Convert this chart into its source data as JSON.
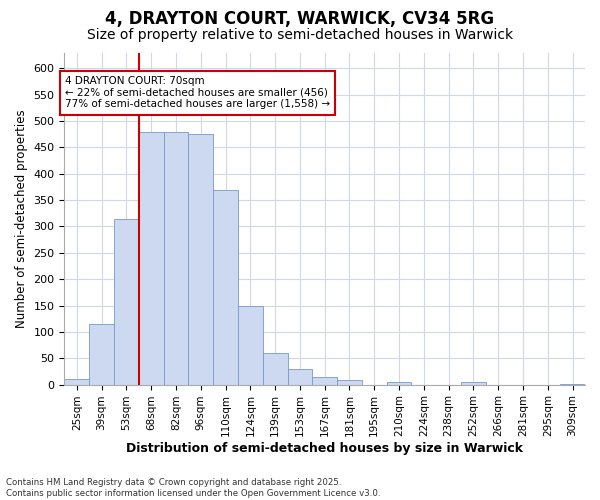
{
  "title1": "4, DRAYTON COURT, WARWICK, CV34 5RG",
  "title2": "Size of property relative to semi-detached houses in Warwick",
  "xlabel": "Distribution of semi-detached houses by size in Warwick",
  "ylabel": "Number of semi-detached properties",
  "bins": [
    "25sqm",
    "39sqm",
    "53sqm",
    "68sqm",
    "82sqm",
    "96sqm",
    "110sqm",
    "124sqm",
    "139sqm",
    "153sqm",
    "167sqm",
    "181sqm",
    "195sqm",
    "210sqm",
    "224sqm",
    "238sqm",
    "252sqm",
    "266sqm",
    "281sqm",
    "295sqm",
    "309sqm"
  ],
  "values": [
    10,
    115,
    315,
    480,
    480,
    475,
    370,
    150,
    60,
    30,
    15,
    8,
    0,
    5,
    0,
    0,
    5,
    0,
    0,
    0,
    2
  ],
  "bar_color": "#ccd9f0",
  "bar_edge_color": "#7799cc",
  "vline_idx": 3,
  "vline_color": "#cc0000",
  "annotation_text": "4 DRAYTON COURT: 70sqm\n← 22% of semi-detached houses are smaller (456)\n77% of semi-detached houses are larger (1,558) →",
  "annotation_box_color": "#ffffff",
  "annotation_box_edge": "#cc0000",
  "ylim": [
    0,
    630
  ],
  "yticks": [
    0,
    50,
    100,
    150,
    200,
    250,
    300,
    350,
    400,
    450,
    500,
    550,
    600
  ],
  "bg_color": "#ffffff",
  "grid_color": "#d0d8e8",
  "footnote": "Contains HM Land Registry data © Crown copyright and database right 2025.\nContains public sector information licensed under the Open Government Licence v3.0.",
  "title1_fontsize": 12,
  "title2_fontsize": 10
}
